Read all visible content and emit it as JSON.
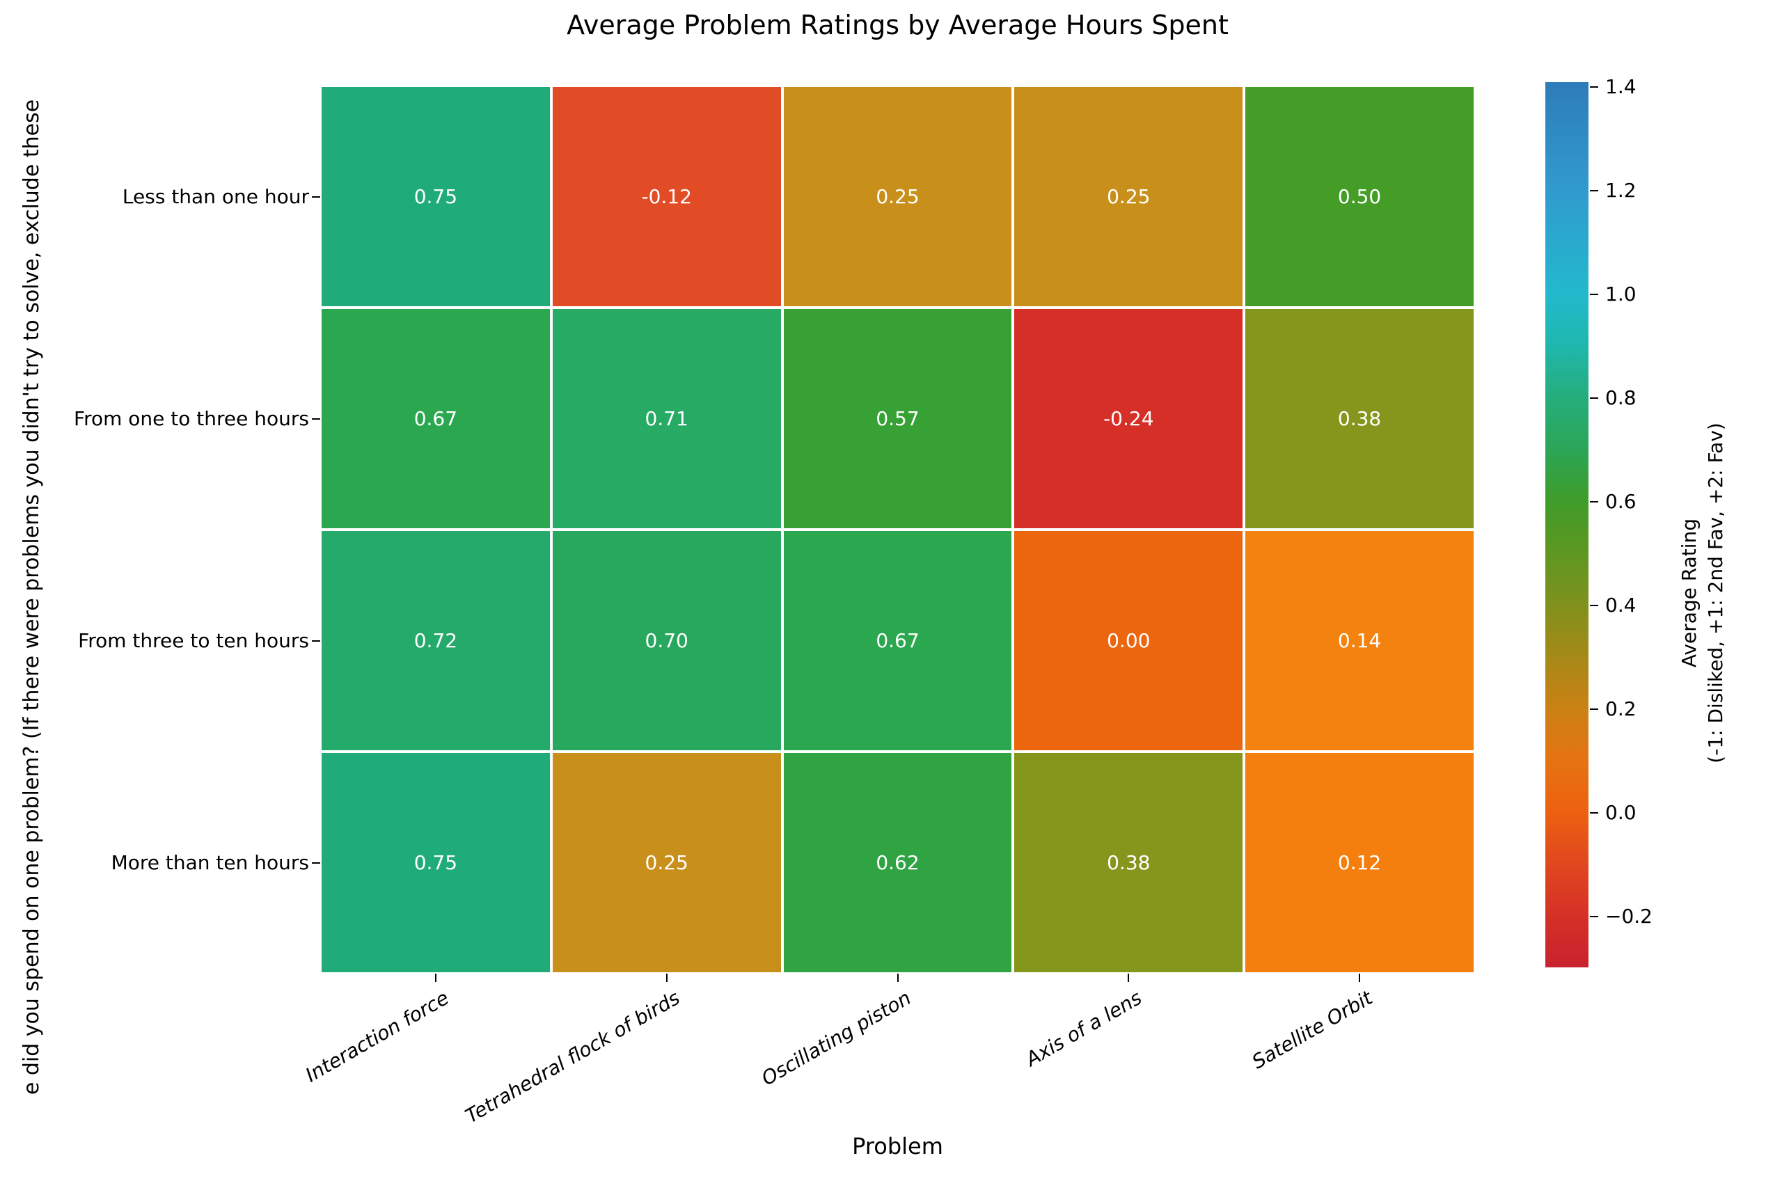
{
  "chart_data": {
    "type": "heatmap",
    "title": "Average Problem Ratings by Average Hours Spent",
    "xlabel": "Problem",
    "ylabel_visible": "e did you spend on one problem? (If there were problems you didn't try to solve, exclude these",
    "columns": [
      "Interaction force",
      "Tetrahedral flock of birds",
      "Oscillating piston",
      "Axis of a lens",
      "Satellite Orbit"
    ],
    "rows": [
      "Less than one hour",
      "From one to three hours",
      "From three to ten hours",
      "More than ten hours"
    ],
    "values": [
      [
        0.75,
        -0.12,
        0.25,
        0.25,
        0.5
      ],
      [
        0.67,
        0.71,
        0.57,
        -0.24,
        0.38
      ],
      [
        0.72,
        0.7,
        0.67,
        0.0,
        0.14
      ],
      [
        0.75,
        0.25,
        0.62,
        0.38,
        0.12
      ]
    ],
    "cell_labels": [
      [
        "0.75",
        "-0.12",
        "0.25",
        "0.25",
        "0.50"
      ],
      [
        "0.67",
        "0.71",
        "0.57",
        "-0.24",
        "0.38"
      ],
      [
        "0.72",
        "0.70",
        "0.67",
        "0.00",
        "0.14"
      ],
      [
        "0.75",
        "0.25",
        "0.62",
        "0.38",
        "0.12"
      ]
    ],
    "cell_colors": [
      [
        "#1fac79",
        "#e14b25",
        "#c8901b",
        "#c8901b",
        "#449d27"
      ],
      [
        "#2ba750",
        "#26aa64",
        "#37a135",
        "#d62f28",
        "#85961d"
      ],
      [
        "#24aa6b",
        "#28a85f",
        "#2ba750",
        "#ec660f",
        "#f3830e"
      ],
      [
        "#1fac79",
        "#c8901b",
        "#30a443",
        "#85961d",
        "#f47f0e"
      ]
    ],
    "grid_line_color": "#ffffff",
    "cell_text_color": "#ffffff",
    "colorbar": {
      "label_line1": "Average Rating",
      "label_line2": "(-1: Disliked, +1: 2nd Fav, +2: Fav)",
      "ticks": [
        "1.4",
        "1.2",
        "1.0",
        "0.8",
        "0.6",
        "0.4",
        "0.2",
        "0.0",
        "−0.2"
      ],
      "scale_min": -0.3,
      "scale_max": 1.41,
      "gradient": [
        {
          "pos": "0%",
          "color": "#2e7cba"
        },
        {
          "pos": "12.3%",
          "color": "#309bce"
        },
        {
          "pos": "24%",
          "color": "#23b9cd"
        },
        {
          "pos": "29.8%",
          "color": "#1fb7ac"
        },
        {
          "pos": "35.7%",
          "color": "#25ad7b"
        },
        {
          "pos": "41.5%",
          "color": "#2ba657"
        },
        {
          "pos": "47.4%",
          "color": "#3f9c28"
        },
        {
          "pos": "53.2%",
          "color": "#5e9722"
        },
        {
          "pos": "59.1%",
          "color": "#80911c"
        },
        {
          "pos": "65%",
          "color": "#a68917"
        },
        {
          "pos": "70.8%",
          "color": "#cb8114"
        },
        {
          "pos": "76.7%",
          "color": "#e67311"
        },
        {
          "pos": "82.6%",
          "color": "#ec6010"
        },
        {
          "pos": "88.4%",
          "color": "#e0471f"
        },
        {
          "pos": "94.3%",
          "color": "#d53026"
        },
        {
          "pos": "100%",
          "color": "#c8232e"
        }
      ]
    }
  }
}
